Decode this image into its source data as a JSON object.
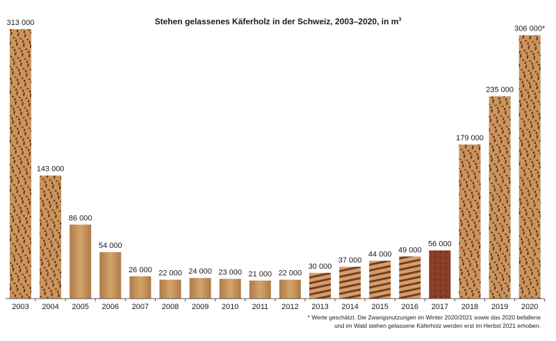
{
  "chart_data": {
    "type": "bar",
    "title": "Stehen gelassenes Käferholz in der Schweiz, 2003–2020, in m",
    "title_superscript": "3",
    "categories": [
      "2003",
      "2004",
      "2005",
      "2006",
      "2007",
      "2008",
      "2009",
      "2010",
      "2011",
      "2012",
      "2013",
      "2014",
      "2015",
      "2016",
      "2017",
      "2018",
      "2019",
      "2020"
    ],
    "values": [
      313000,
      143000,
      86000,
      54000,
      26000,
      22000,
      24000,
      23000,
      21000,
      22000,
      30000,
      37000,
      44000,
      49000,
      56000,
      179000,
      235000,
      306000
    ],
    "value_labels": [
      "313 000",
      "143 000",
      "86 000",
      "54 000",
      "26 000",
      "22 000",
      "24 000",
      "23 000",
      "21 000",
      "22 000",
      "30 000",
      "37 000",
      "44 000",
      "49 000",
      "56 000",
      "179 000",
      "235 000",
      "306 000*"
    ],
    "ylim": [
      0,
      313000
    ],
    "xlabel": "",
    "ylabel": "",
    "grid": false,
    "footnote": "* Werte geschätzt. Die Zwangsnutzungen im Winter 2020/2021 sowie das 2020 befallene und im Wald stehen gelassene Käferholz werden erst im Herbst 2021 erhoben.",
    "colors": {
      "bar_light": "#c9995f",
      "bar_mid": "#a9784a",
      "bar_dark": "#7a3a22",
      "stripe_dark": "#5a2418",
      "axis": "#555555"
    }
  }
}
